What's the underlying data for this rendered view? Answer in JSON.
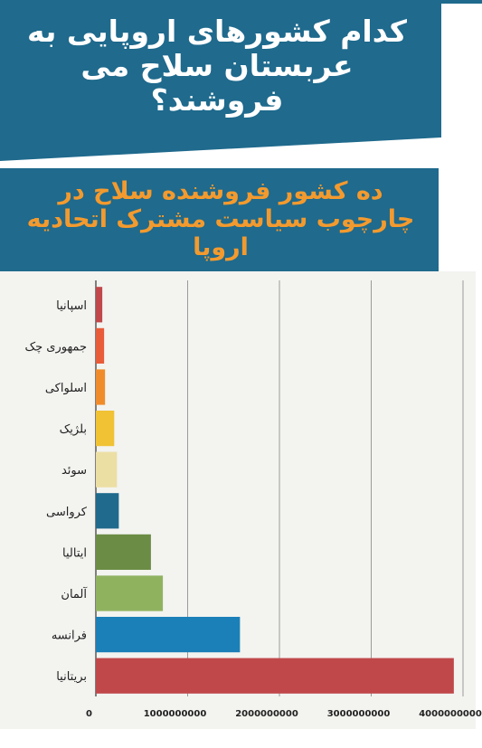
{
  "header": {
    "title": "کدام کشورهای اروپایی به عربستان سلاح می فروشند؟"
  },
  "subheader": {
    "title": "ده کشور فروشنده سلاح در چارچوب سیاست مشترک اتحادیه اروپا"
  },
  "colors": {
    "header_bg": "#1f6a8d",
    "subtitle_text": "#f39a2e",
    "chart_bg": "#f3f3f0",
    "gridline": "#555555"
  },
  "chart_data": {
    "type": "bar",
    "orientation": "horizontal",
    "categories": [
      "اسپانیا",
      "جمهوری چک",
      "اسلواکی",
      "بلژیک",
      "سوئد",
      "کرواسی",
      "ایتالیا",
      "آلمان",
      "فرانسه",
      "بریتانیا"
    ],
    "values": [
      70000000,
      90000000,
      100000000,
      200000000,
      230000000,
      250000000,
      600000000,
      730000000,
      1570000000,
      3900000000
    ],
    "bar_colors": [
      "#c0474a",
      "#e85c3a",
      "#f08b2b",
      "#f0c234",
      "#ecdfa4",
      "#1f6a8d",
      "#6b8c45",
      "#8fb25f",
      "#1b7fb8",
      "#c0474a"
    ],
    "x_ticks": [
      "0",
      "1000000000",
      "2000000000",
      "3000000000",
      "4000000000"
    ],
    "xlim": [
      0,
      4000000000
    ],
    "grid": true
  }
}
